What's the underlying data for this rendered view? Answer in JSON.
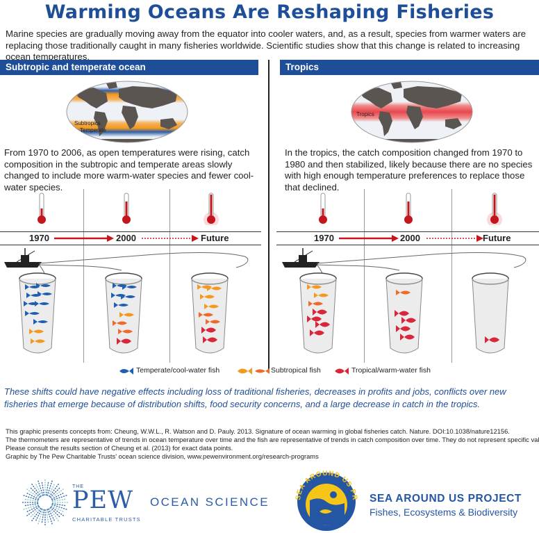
{
  "title": "Warming Oceans Are Reshaping Fisheries",
  "intro": "Marine species are gradually moving away from the equator into cooler waters, and, as a result, species from warmer waters are replacing those traditionally caught in many fisheries worldwide. Scientific studies show that this change is related to increasing ocean temperatures.",
  "left": {
    "header": "Subtropic and temperate ocean",
    "map_labels": [
      "Subtropics",
      "Temperate"
    ],
    "text": "From 1970 to 2006, as open temperatures were rising, catch composition in the subtropic and temperate areas slowly changed to include more warm-water species and fewer cool-water species.",
    "timeline": [
      "1970",
      "2000",
      "Future"
    ]
  },
  "right": {
    "header": "Tropics",
    "map_labels": [
      "Tropics"
    ],
    "text": "In the tropics, the catch composition changed from 1970 to 1980 and then stabilized, likely because there are no species with high enough temperature preferences to replace those that declined.",
    "timeline": [
      "1970",
      "2000",
      "Future"
    ]
  },
  "legend": {
    "temperate": "Temperate/cool-water fish",
    "subtropical": "Subtropical fish",
    "tropical": "Tropical/warm-water fish"
  },
  "colors": {
    "blue": "#1f4e98",
    "fish_blue": "#1e5fb4",
    "fish_orange": "#f39a1e",
    "fish_orange2": "#ee6a2a",
    "fish_red": "#d8273b",
    "thermo_red": "#c4161c"
  },
  "outro": "These shifts could have negative effects including loss of traditional fisheries, decreases in profits and jobs, conflicts over new fisheries that emerge because of distribution shifts, food security concerns, and a large decrease in catch in the tropics.",
  "footnotes": [
    "This graphic presents concepts from: Cheung, W.W.L., R. Watson and D. Pauly. 2013. Signature of ocean warming in global fisheries catch. Nature. DOI:10.1038/nature12156.",
    "The thermometers are representative of trends in ocean temperature over time and the fish are representative of trends in catch composition over time. They do not represent specific values.",
    "Please consult the results section of Cheung et al. (2013) for exact data points.",
    "Graphic by The Pew Charitable Trusts' ocean science division, www.pewenvironment.org/research-programs"
  ],
  "logos": {
    "pew_the": "THE",
    "pew_name": "PEW",
    "pew_sub": "CHARITABLE TRUSTS",
    "ocean_science": "OCEAN SCIENCE",
    "seal_text": "SEA AROUND US PROJECT",
    "sau_title": "SEA AROUND US PROJECT",
    "sau_sub": "Fishes, Ecosystems & Biodiversity"
  }
}
